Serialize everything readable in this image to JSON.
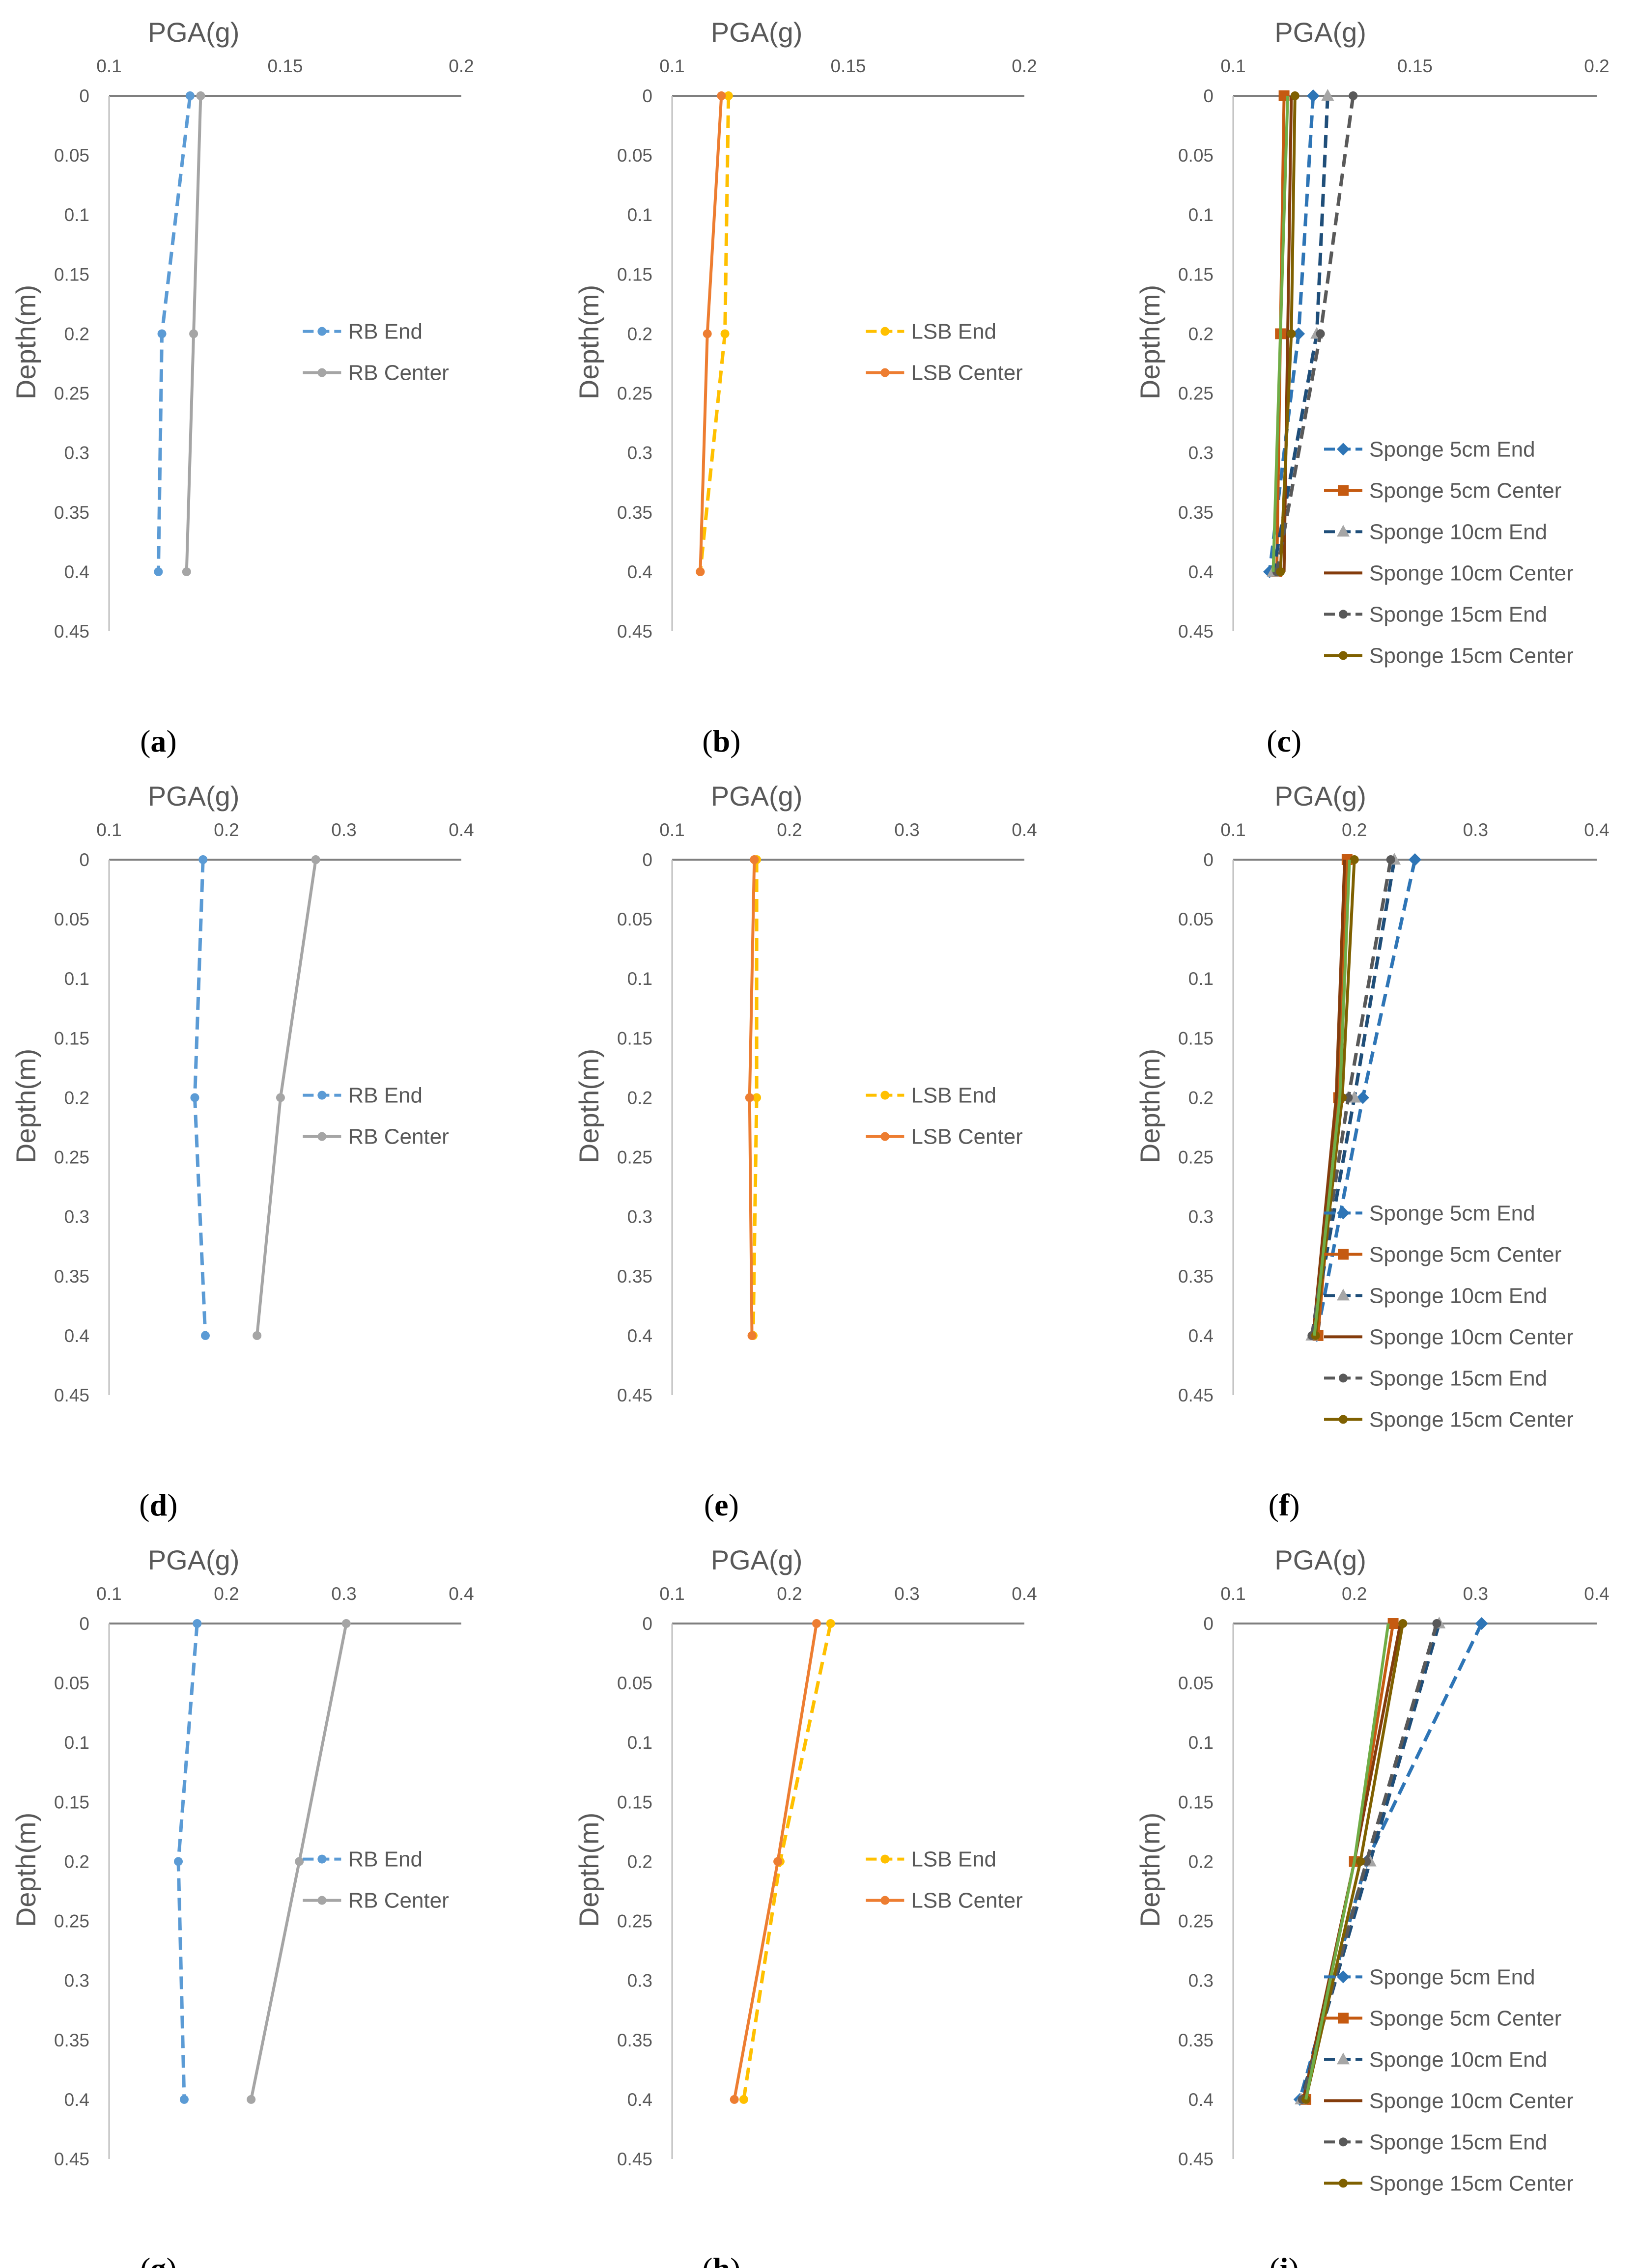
{
  "figure": {
    "domain": "chart-grid"
  },
  "chart_data": [
    {
      "panel": "(a)",
      "caption_letter": "a",
      "type": "line",
      "title": "PGA(g)",
      "xlabel": "PGA(g)",
      "ylabel": "Depth(m)",
      "xlim": [
        0.1,
        0.2
      ],
      "xticks": [
        "0.1",
        "0.15",
        "0.2"
      ],
      "xtick_values": [
        0.1,
        0.15,
        0.2
      ],
      "ylim": [
        0,
        0.45
      ],
      "yticks": [
        "0",
        "0.05",
        "0.1",
        "0.15",
        "0.2",
        "0.25",
        "0.3",
        "0.35",
        "0.4",
        "0.45"
      ],
      "legend_position": "middle-right",
      "series": [
        {
          "name": "RB End",
          "color": "#5B9BD5",
          "dash": "dashed",
          "marker": "dot",
          "x": [
            0.123,
            0.115,
            0.114
          ],
          "y": [
            0,
            0.2,
            0.4
          ]
        },
        {
          "name": "RB Center",
          "color": "#A5A5A5",
          "dash": "solid",
          "marker": "dot",
          "x": [
            0.126,
            0.124,
            0.122
          ],
          "y": [
            0,
            0.2,
            0.4
          ]
        }
      ]
    },
    {
      "panel": "(b)",
      "caption_letter": "b",
      "type": "line",
      "title": "PGA(g)",
      "xlabel": "PGA(g)",
      "ylabel": "Depth(m)",
      "xlim": [
        0.1,
        0.2
      ],
      "xticks": [
        "0.1",
        "0.15",
        "0.2"
      ],
      "xtick_values": [
        0.1,
        0.15,
        0.2
      ],
      "ylim": [
        0,
        0.45
      ],
      "yticks": [
        "0",
        "0.05",
        "0.1",
        "0.15",
        "0.2",
        "0.25",
        "0.3",
        "0.35",
        "0.4",
        "0.45"
      ],
      "legend_position": "middle-right",
      "series": [
        {
          "name": "LSB End",
          "color": "#FFC000",
          "dash": "dashed",
          "marker": "dot",
          "x": [
            0.116,
            0.115,
            0.108
          ],
          "y": [
            0,
            0.2,
            0.4
          ]
        },
        {
          "name": "LSB Center",
          "color": "#ED7D31",
          "dash": "solid",
          "marker": "dot",
          "x": [
            0.114,
            0.11,
            0.108
          ],
          "y": [
            0,
            0.2,
            0.4
          ]
        }
      ]
    },
    {
      "panel": "(c)",
      "caption_letter": "c",
      "type": "line",
      "title": "PGA(g)",
      "xlabel": "PGA(g)",
      "ylabel": "Depth(m)",
      "xlim": [
        0.1,
        0.2
      ],
      "xticks": [
        "0.1",
        "0.15",
        "0.2"
      ],
      "xtick_values": [
        0.1,
        0.15,
        0.2
      ],
      "ylim": [
        0,
        0.45
      ],
      "yticks": [
        "0",
        "0.05",
        "0.1",
        "0.15",
        "0.2",
        "0.25",
        "0.3",
        "0.35",
        "0.4",
        "0.45"
      ],
      "legend_position": "bottom-right",
      "series": [
        {
          "name": "Sponge 5cm End",
          "color": "#2E75B6",
          "dash": "dashed",
          "marker": "diamond",
          "x": [
            0.122,
            0.118,
            0.11
          ],
          "y": [
            0,
            0.2,
            0.4
          ]
        },
        {
          "name": "Sponge 5cm Center",
          "color": "#C55A11",
          "dash": "solid",
          "marker": "square",
          "x": [
            0.114,
            0.113,
            0.112
          ],
          "y": [
            0,
            0.2,
            0.4
          ]
        },
        {
          "name": "Sponge 10cm End",
          "color": "#1F4E79",
          "dash": "dashed",
          "marker": "triangle",
          "x": [
            0.126,
            0.123,
            0.111
          ],
          "y": [
            0,
            0.2,
            0.4
          ]
        },
        {
          "name": "Sponge 10cm Center",
          "color": "#843C0C",
          "dash": "solid",
          "marker": "none",
          "x": [
            0.116,
            0.115,
            0.114
          ],
          "y": [
            0,
            0.2,
            0.4
          ]
        },
        {
          "name": "Sponge 15cm End",
          "color": "#595959",
          "dash": "dashed",
          "marker": "dot",
          "x": [
            0.133,
            0.124,
            0.112
          ],
          "y": [
            0,
            0.2,
            0.4
          ]
        },
        {
          "name": "Sponge 15cm Center",
          "color": "#7F6000",
          "dash": "solid",
          "marker": "dot",
          "x": [
            0.117,
            0.116,
            0.113
          ],
          "y": [
            0,
            0.2,
            0.4
          ]
        },
        {
          "name": "",
          "color": "#70AD47",
          "dash": "solid",
          "marker": "none",
          "x": [
            0.115,
            0.113,
            0.111
          ],
          "y": [
            0,
            0.2,
            0.4
          ]
        }
      ]
    },
    {
      "panel": "(d)",
      "caption_letter": "d",
      "type": "line",
      "title": "PGA(g)",
      "xlabel": "PGA(g)",
      "ylabel": "Depth(m)",
      "xlim": [
        0.1,
        0.4
      ],
      "xticks": [
        "0.1",
        "0.2",
        "0.3",
        "0.4"
      ],
      "xtick_values": [
        0.1,
        0.2,
        0.3,
        0.4
      ],
      "ylim": [
        0,
        0.45
      ],
      "yticks": [
        "0",
        "0.05",
        "0.1",
        "0.15",
        "0.2",
        "0.25",
        "0.3",
        "0.35",
        "0.4",
        "0.45"
      ],
      "legend_position": "middle-right",
      "series": [
        {
          "name": "RB End",
          "color": "#5B9BD5",
          "dash": "dashed",
          "marker": "dot",
          "x": [
            0.18,
            0.173,
            0.182
          ],
          "y": [
            0,
            0.2,
            0.4
          ]
        },
        {
          "name": "RB Center",
          "color": "#A5A5A5",
          "dash": "solid",
          "marker": "dot",
          "x": [
            0.276,
            0.246,
            0.226
          ],
          "y": [
            0,
            0.2,
            0.4
          ]
        }
      ]
    },
    {
      "panel": "(e)",
      "caption_letter": "e",
      "type": "line",
      "title": "PGA(g)",
      "xlabel": "PGA(g)",
      "ylabel": "Depth(m)",
      "xlim": [
        0.1,
        0.4
      ],
      "xticks": [
        "0.1",
        "0.2",
        "0.3",
        "0.4"
      ],
      "xtick_values": [
        0.1,
        0.2,
        0.3,
        0.4
      ],
      "ylim": [
        0,
        0.45
      ],
      "yticks": [
        "0",
        "0.05",
        "0.1",
        "0.15",
        "0.2",
        "0.25",
        "0.3",
        "0.35",
        "0.4",
        "0.45"
      ],
      "legend_position": "middle-right",
      "series": [
        {
          "name": "LSB End",
          "color": "#FFC000",
          "dash": "dashed",
          "marker": "dot",
          "x": [
            0.172,
            0.172,
            0.169
          ],
          "y": [
            0,
            0.2,
            0.4
          ]
        },
        {
          "name": "LSB Center",
          "color": "#ED7D31",
          "dash": "solid",
          "marker": "dot",
          "x": [
            0.17,
            0.166,
            0.168
          ],
          "y": [
            0,
            0.2,
            0.4
          ]
        }
      ]
    },
    {
      "panel": "(f)",
      "caption_letter": "f",
      "type": "line",
      "title": "PGA(g)",
      "xlabel": "PGA(g)",
      "ylabel": "Depth(m)",
      "xlim": [
        0.1,
        0.4
      ],
      "xticks": [
        "0.1",
        "0.2",
        "0.3",
        "0.4"
      ],
      "xtick_values": [
        0.1,
        0.2,
        0.3,
        0.4
      ],
      "ylim": [
        0,
        0.45
      ],
      "yticks": [
        "0",
        "0.05",
        "0.1",
        "0.15",
        "0.2",
        "0.25",
        "0.3",
        "0.35",
        "0.4",
        "0.45"
      ],
      "legend_position": "bottom-right",
      "series": [
        {
          "name": "Sponge 5cm End",
          "color": "#2E75B6",
          "dash": "dashed",
          "marker": "diamond",
          "x": [
            0.25,
            0.207,
            0.169
          ],
          "y": [
            0,
            0.2,
            0.4
          ]
        },
        {
          "name": "Sponge 5cm Center",
          "color": "#C55A11",
          "dash": "solid",
          "marker": "square",
          "x": [
            0.194,
            0.187,
            0.17
          ],
          "y": [
            0,
            0.2,
            0.4
          ]
        },
        {
          "name": "Sponge 10cm End",
          "color": "#1F4E79",
          "dash": "dashed",
          "marker": "triangle",
          "x": [
            0.233,
            0.2,
            0.165
          ],
          "y": [
            0,
            0.2,
            0.4
          ]
        },
        {
          "name": "Sponge 10cm Center",
          "color": "#843C0C",
          "dash": "solid",
          "marker": "none",
          "x": [
            0.192,
            0.185,
            0.166
          ],
          "y": [
            0,
            0.2,
            0.4
          ]
        },
        {
          "name": "Sponge 15cm End",
          "color": "#595959",
          "dash": "dashed",
          "marker": "dot",
          "x": [
            0.23,
            0.195,
            0.165
          ],
          "y": [
            0,
            0.2,
            0.4
          ]
        },
        {
          "name": "Sponge 15cm Center",
          "color": "#7F6000",
          "dash": "solid",
          "marker": "dot",
          "x": [
            0.2,
            0.19,
            0.168
          ],
          "y": [
            0,
            0.2,
            0.4
          ]
        },
        {
          "name": "",
          "color": "#70AD47",
          "dash": "solid",
          "marker": "none",
          "x": [
            0.196,
            0.188,
            0.167
          ],
          "y": [
            0,
            0.2,
            0.4
          ]
        }
      ]
    },
    {
      "panel": "(g)",
      "caption_letter": "g",
      "type": "line",
      "title": "PGA(g)",
      "xlabel": "PGA(g)",
      "ylabel": "Depth(m)",
      "xlim": [
        0.1,
        0.4
      ],
      "xticks": [
        "0.1",
        "0.2",
        "0.3",
        "0.4"
      ],
      "xtick_values": [
        0.1,
        0.2,
        0.3,
        0.4
      ],
      "ylim": [
        0,
        0.45
      ],
      "yticks": [
        "0",
        "0.05",
        "0.1",
        "0.15",
        "0.2",
        "0.25",
        "0.3",
        "0.35",
        "0.4",
        "0.45"
      ],
      "legend_position": "middle-right",
      "series": [
        {
          "name": "RB End",
          "color": "#5B9BD5",
          "dash": "dashed",
          "marker": "dot",
          "x": [
            0.175,
            0.159,
            0.164
          ],
          "y": [
            0,
            0.2,
            0.4
          ]
        },
        {
          "name": "RB Center",
          "color": "#A5A5A5",
          "dash": "solid",
          "marker": "dot",
          "x": [
            0.302,
            0.262,
            0.221
          ],
          "y": [
            0,
            0.2,
            0.4
          ]
        }
      ]
    },
    {
      "panel": "(h)",
      "caption_letter": "h",
      "type": "line",
      "title": "PGA(g)",
      "xlabel": "PGA(g)",
      "ylabel": "Depth(m)",
      "xlim": [
        0.1,
        0.4
      ],
      "xticks": [
        "0.1",
        "0.2",
        "0.3",
        "0.4"
      ],
      "xtick_values": [
        0.1,
        0.2,
        0.3,
        0.4
      ],
      "ylim": [
        0,
        0.45
      ],
      "yticks": [
        "0",
        "0.05",
        "0.1",
        "0.15",
        "0.2",
        "0.25",
        "0.3",
        "0.35",
        "0.4",
        "0.45"
      ],
      "legend_position": "middle-right",
      "series": [
        {
          "name": "LSB End",
          "color": "#FFC000",
          "dash": "dashed",
          "marker": "dot",
          "x": [
            0.235,
            0.192,
            0.161
          ],
          "y": [
            0,
            0.2,
            0.4
          ]
        },
        {
          "name": "LSB Center",
          "color": "#ED7D31",
          "dash": "solid",
          "marker": "dot",
          "x": [
            0.223,
            0.19,
            0.153
          ],
          "y": [
            0,
            0.2,
            0.4
          ]
        }
      ]
    },
    {
      "panel": "(i)",
      "caption_letter": "i",
      "type": "line",
      "title": "PGA(g)",
      "xlabel": "PGA(g)",
      "ylabel": "Depth(m)",
      "xlim": [
        0.1,
        0.4
      ],
      "xticks": [
        "0.1",
        "0.2",
        "0.3",
        "0.4"
      ],
      "xtick_values": [
        0.1,
        0.2,
        0.3,
        0.4
      ],
      "ylim": [
        0,
        0.45
      ],
      "yticks": [
        "0",
        "0.05",
        "0.1",
        "0.15",
        "0.2",
        "0.25",
        "0.3",
        "0.35",
        "0.4",
        "0.45"
      ],
      "legend_position": "bottom-right",
      "series": [
        {
          "name": "Sponge 5cm End",
          "color": "#2E75B6",
          "dash": "dashed",
          "marker": "diamond",
          "x": [
            0.305,
            0.21,
            0.155
          ],
          "y": [
            0,
            0.2,
            0.4
          ]
        },
        {
          "name": "Sponge 5cm Center",
          "color": "#C55A11",
          "dash": "solid",
          "marker": "square",
          "x": [
            0.232,
            0.2,
            0.16
          ],
          "y": [
            0,
            0.2,
            0.4
          ]
        },
        {
          "name": "Sponge 10cm End",
          "color": "#1F4E79",
          "dash": "dashed",
          "marker": "triangle",
          "x": [
            0.27,
            0.213,
            0.156
          ],
          "y": [
            0,
            0.2,
            0.4
          ]
        },
        {
          "name": "Sponge 10cm Center",
          "color": "#843C0C",
          "dash": "solid",
          "marker": "none",
          "x": [
            0.238,
            0.2,
            0.158
          ],
          "y": [
            0,
            0.2,
            0.4
          ]
        },
        {
          "name": "Sponge 15cm End",
          "color": "#595959",
          "dash": "dashed",
          "marker": "dot",
          "x": [
            0.268,
            0.21,
            0.157
          ],
          "y": [
            0,
            0.2,
            0.4
          ]
        },
        {
          "name": "Sponge 15cm Center",
          "color": "#7F6000",
          "dash": "solid",
          "marker": "dot",
          "x": [
            0.24,
            0.205,
            0.16
          ],
          "y": [
            0,
            0.2,
            0.4
          ]
        },
        {
          "name": "",
          "color": "#70AD47",
          "dash": "solid",
          "marker": "none",
          "x": [
            0.228,
            0.2,
            0.16
          ],
          "y": [
            0,
            0.2,
            0.4
          ]
        }
      ]
    }
  ]
}
